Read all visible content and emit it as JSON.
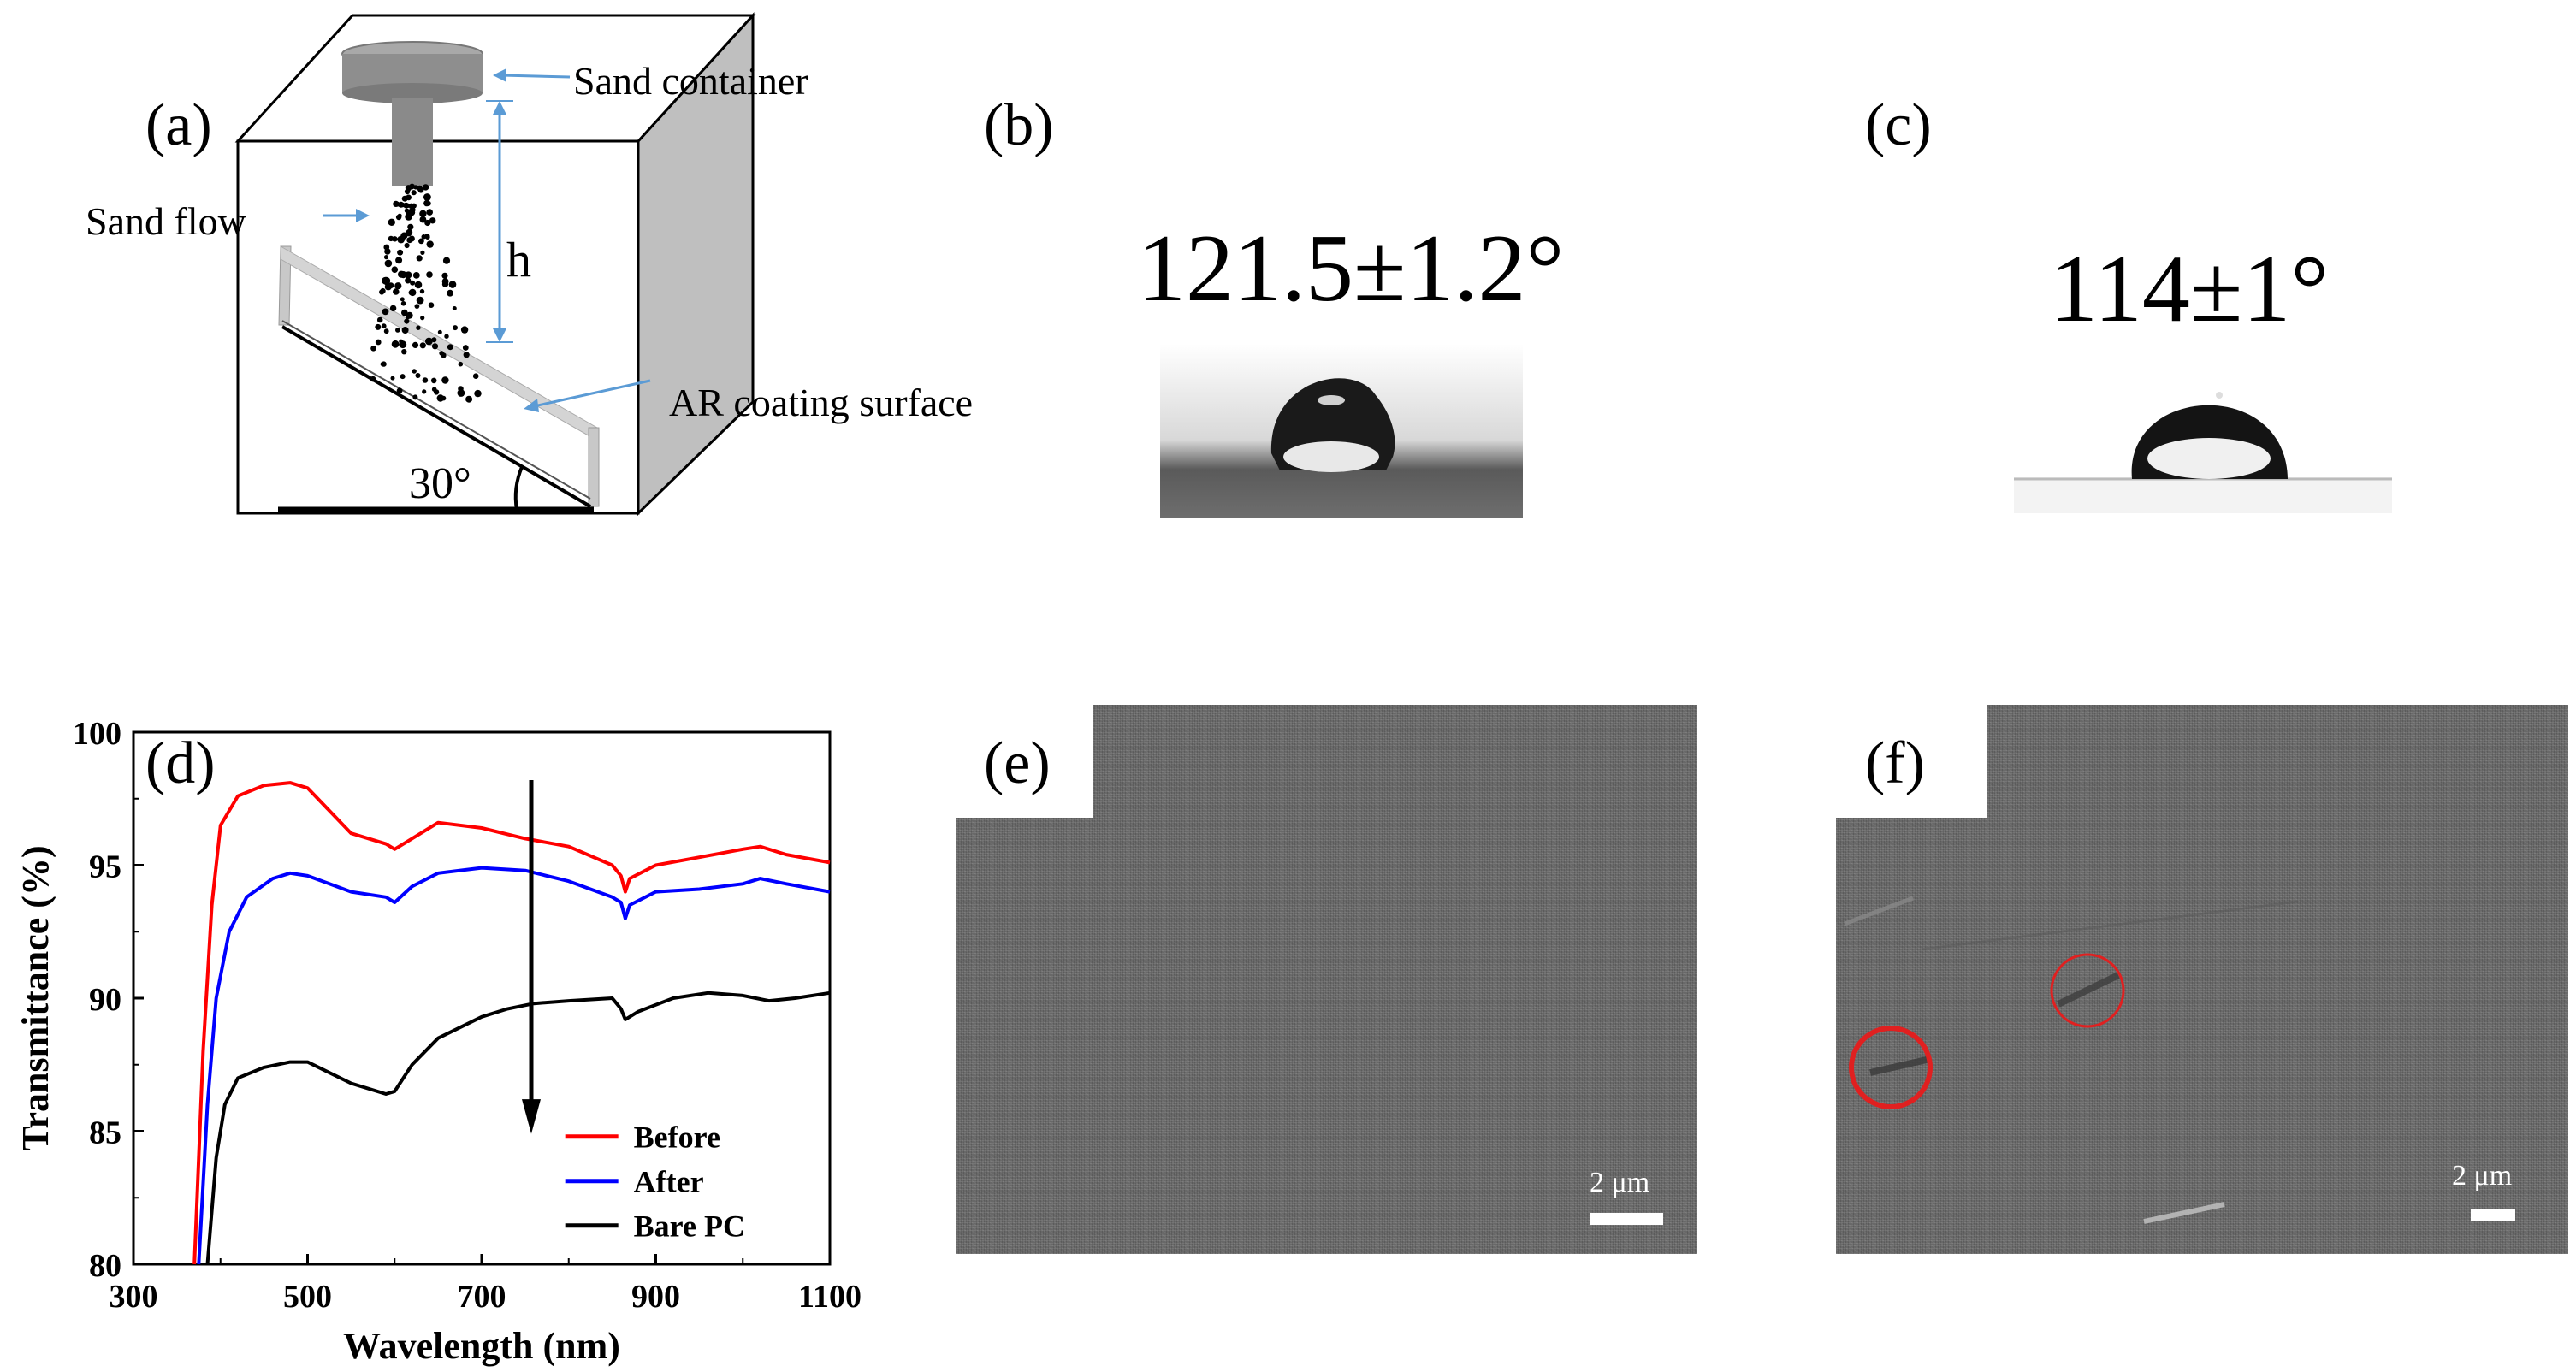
{
  "figure": {
    "panels": {
      "a": {
        "letter": "(a)",
        "labels": {
          "sand_container": "Sand container",
          "sand_flow": "Sand flow",
          "h": "h",
          "ar_coating_surface": "AR coating surface",
          "angle": "30°"
        }
      },
      "b": {
        "letter": "(b)",
        "contact_angle": "121.5±1.2°"
      },
      "c": {
        "letter": "(c)",
        "contact_angle": "114±1°"
      },
      "d": {
        "letter": "(d)"
      },
      "e": {
        "letter": "(e)",
        "scale_bar": "2 μm"
      },
      "f": {
        "letter": "(f)",
        "scale_bar": "2 μm"
      }
    },
    "colors": {
      "before": "#ff0000",
      "after": "#0000ff",
      "bare_pc": "#000000",
      "marker_circle": "#e02020",
      "arrow_line": "#5b9bd5"
    }
  },
  "chart_data": {
    "type": "line",
    "xlabel": "Wavelength (nm)",
    "ylabel": "Transmittance (%)",
    "xlim": [
      300,
      1100
    ],
    "ylim": [
      80,
      100
    ],
    "xticks": [
      300,
      500,
      700,
      900,
      1100
    ],
    "yticks": [
      80,
      85,
      90,
      95,
      100
    ],
    "legend_position": "bottom-right",
    "annotation": "downward arrow at ~760 nm from 98 to 85",
    "series": [
      {
        "name": "Before",
        "color": "#ff0000",
        "x": [
          370,
          380,
          390,
          400,
          420,
          450,
          480,
          500,
          550,
          590,
          600,
          620,
          650,
          700,
          750,
          800,
          850,
          860,
          865,
          870,
          900,
          950,
          1000,
          1020,
          1050,
          1100
        ],
        "y": [
          80,
          88,
          93.5,
          96.5,
          97.6,
          98.0,
          98.1,
          97.9,
          96.2,
          95.8,
          95.6,
          96.0,
          96.6,
          96.4,
          96.0,
          95.7,
          95.0,
          94.6,
          94.0,
          94.5,
          95.0,
          95.3,
          95.6,
          95.7,
          95.4,
          95.1
        ]
      },
      {
        "name": "After",
        "color": "#0000ff",
        "x": [
          375,
          385,
          395,
          410,
          430,
          460,
          480,
          500,
          550,
          590,
          600,
          620,
          650,
          700,
          750,
          800,
          850,
          860,
          865,
          870,
          900,
          950,
          1000,
          1020,
          1050,
          1100
        ],
        "y": [
          80,
          86,
          90,
          92.5,
          93.8,
          94.5,
          94.7,
          94.6,
          94.0,
          93.8,
          93.6,
          94.2,
          94.7,
          94.9,
          94.8,
          94.4,
          93.8,
          93.6,
          93.0,
          93.5,
          94.0,
          94.1,
          94.3,
          94.5,
          94.3,
          94.0
        ]
      },
      {
        "name": "Bare PC",
        "color": "#000000",
        "x": [
          385,
          395,
          405,
          420,
          450,
          480,
          500,
          550,
          590,
          600,
          620,
          650,
          700,
          730,
          760,
          800,
          850,
          860,
          865,
          880,
          920,
          960,
          1000,
          1030,
          1060,
          1100
        ],
        "y": [
          80,
          84,
          86,
          87.0,
          87.4,
          87.6,
          87.6,
          86.8,
          86.4,
          86.5,
          87.5,
          88.5,
          89.3,
          89.6,
          89.8,
          89.9,
          90.0,
          89.6,
          89.2,
          89.5,
          90.0,
          90.2,
          90.1,
          89.9,
          90.0,
          90.2
        ]
      }
    ]
  }
}
